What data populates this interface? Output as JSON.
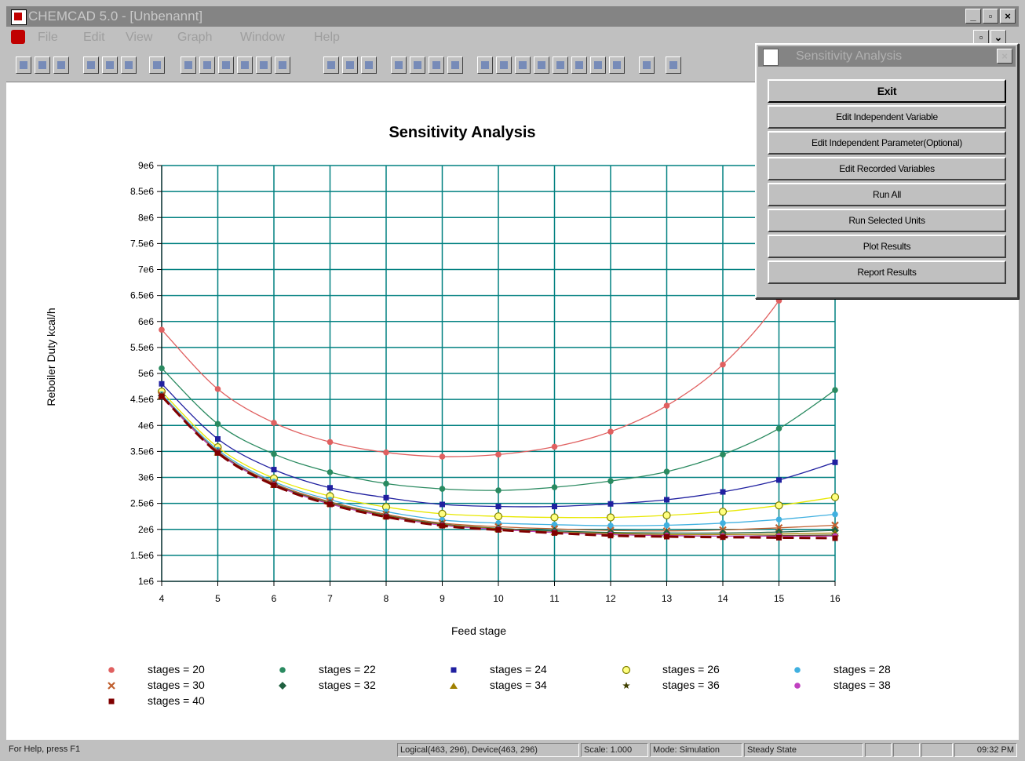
{
  "window": {
    "title": "CHEMCAD 5.0 - [Unbenannt]",
    "controls": [
      "_",
      "▫",
      "×"
    ]
  },
  "menu": {
    "items": [
      "File",
      "Edit",
      "View",
      "Graph",
      "Window",
      "Help"
    ]
  },
  "toolbar": {
    "buttons": [
      "new-icon",
      "open-icon",
      "save-icon",
      "cut-icon",
      "copy-icon",
      "paste-icon",
      "print-icon",
      "zoom-percent-icon",
      "zoom-in-icon",
      "zoom-out-icon",
      "pointer-icon",
      "pointer-select-icon",
      "zoom-fit-icon",
      "rectangle-icon",
      "grid-icon",
      "chart-icon",
      "xy-icon",
      "y-plus-icon",
      "h-plus-icon",
      "arrow-icon",
      "r-icon",
      "paint-icon",
      "rotate-icon",
      "flip-icon",
      "text-icon",
      "frame-icon",
      "marker-icon",
      "legend-icon",
      "pilcrow-icon",
      "help-icon"
    ]
  },
  "dialog": {
    "title": "Sensitivity Analysis",
    "buttons": [
      "Exit",
      "Edit Independent Variable",
      "Edit Independent Parameter(Optional)",
      "Edit Recorded Variables",
      "Run All",
      "Run Selected Units",
      "Plot Results",
      "Report Results"
    ]
  },
  "statusbar": {
    "help": "For Help, press F1",
    "coords": "Logical(463, 296), Device(463, 296)",
    "scale": "Scale: 1.000",
    "mode": "Mode: Simulation",
    "state": "Steady State",
    "time": "09:32 PM"
  },
  "colors": {
    "grid": "#008080",
    "axis": "#000000"
  },
  "chart_data": {
    "type": "line",
    "title": "Sensitivity Analysis",
    "xlabel": "Feed stage",
    "ylabel": "Reboiler Duty  kcal/h",
    "x": [
      4,
      5,
      6,
      7,
      8,
      9,
      10,
      11,
      12,
      13,
      14,
      15,
      16
    ],
    "x_ticks": [
      "4",
      "5",
      "6",
      "7",
      "8",
      "9",
      "10",
      "11",
      "12",
      "13",
      "14",
      "15",
      "16"
    ],
    "ylim": [
      1000000,
      9000000
    ],
    "y_ticks": [
      {
        "v": 1000000,
        "label": "1e6"
      },
      {
        "v": 1500000,
        "label": "1.5e6"
      },
      {
        "v": 2000000,
        "label": "2e6"
      },
      {
        "v": 2500000,
        "label": "2.5e6"
      },
      {
        "v": 3000000,
        "label": "3e6"
      },
      {
        "v": 3500000,
        "label": "3.5e6"
      },
      {
        "v": 4000000,
        "label": "4e6"
      },
      {
        "v": 4500000,
        "label": "4.5e6"
      },
      {
        "v": 5000000,
        "label": "5e6"
      },
      {
        "v": 5500000,
        "label": "5.5e6"
      },
      {
        "v": 6000000,
        "label": "6e6"
      },
      {
        "v": 6500000,
        "label": "6.5e6"
      },
      {
        "v": 7000000,
        "label": "7e6"
      },
      {
        "v": 7500000,
        "label": "7.5e6"
      },
      {
        "v": 8000000,
        "label": "8e6"
      },
      {
        "v": 8500000,
        "label": "8.5e6"
      },
      {
        "v": 9000000,
        "label": "9e6"
      }
    ],
    "grid": true,
    "legend_position": "bottom",
    "series": [
      {
        "name": "stages = 20",
        "color": "#e06060",
        "marker": "dot",
        "values": [
          5840000,
          4700000,
          4050000,
          3680000,
          3480000,
          3400000,
          3440000,
          3590000,
          3880000,
          4380000,
          5170000,
          6400000,
          8200000
        ]
      },
      {
        "name": "stages = 22",
        "color": "#2a8a60",
        "marker": "dot",
        "values": [
          5100000,
          4030000,
          3450000,
          3100000,
          2880000,
          2780000,
          2750000,
          2810000,
          2930000,
          3110000,
          3440000,
          3940000,
          4680000
        ]
      },
      {
        "name": "stages = 24",
        "color": "#2020a0",
        "marker": "square",
        "values": [
          4800000,
          3740000,
          3150000,
          2800000,
          2610000,
          2480000,
          2440000,
          2440000,
          2490000,
          2570000,
          2720000,
          2950000,
          3290000
        ]
      },
      {
        "name": "stages = 26",
        "color": "#e8e800",
        "marker": "circle",
        "values": [
          4650000,
          3580000,
          2980000,
          2640000,
          2430000,
          2300000,
          2250000,
          2230000,
          2230000,
          2270000,
          2340000,
          2460000,
          2620000
        ]
      },
      {
        "name": "stages = 28",
        "color": "#40b0e0",
        "marker": "dot",
        "values": [
          4600000,
          3530000,
          2920000,
          2570000,
          2340000,
          2180000,
          2120000,
          2090000,
          2070000,
          2080000,
          2120000,
          2190000,
          2290000
        ]
      },
      {
        "name": "stages = 30",
        "color": "#c06030",
        "marker": "x",
        "values": [
          4580000,
          3500000,
          2890000,
          2530000,
          2290000,
          2120000,
          2050000,
          2010000,
          1980000,
          1970000,
          1990000,
          2030000,
          2080000
        ]
      },
      {
        "name": "stages = 32",
        "color": "#206040",
        "marker": "diamond",
        "values": [
          4570000,
          3490000,
          2870000,
          2510000,
          2270000,
          2100000,
          2020000,
          1970000,
          1940000,
          1930000,
          1930000,
          1950000,
          1980000
        ]
      },
      {
        "name": "stages = 34",
        "color": "#a08000",
        "marker": "triangle",
        "values": [
          4570000,
          3480000,
          2860000,
          2500000,
          2260000,
          2090000,
          2010000,
          1950000,
          1920000,
          1900000,
          1900000,
          1910000,
          1930000
        ]
      },
      {
        "name": "stages = 36",
        "color": "#404000",
        "marker": "star",
        "values": [
          4560000,
          3480000,
          2860000,
          2490000,
          2250000,
          2080000,
          2000000,
          1940000,
          1900000,
          1880000,
          1870000,
          1880000,
          1890000
        ]
      },
      {
        "name": "stages = 38",
        "color": "#c040c0",
        "marker": "dot",
        "values": [
          4560000,
          3480000,
          2860000,
          2490000,
          2250000,
          2080000,
          2000000,
          1940000,
          1900000,
          1880000,
          1870000,
          1870000,
          1870000
        ]
      },
      {
        "name": "stages = 40",
        "color": "#800000",
        "marker": "square",
        "dashed": true,
        "values": [
          4560000,
          3470000,
          2850000,
          2480000,
          2240000,
          2070000,
          1990000,
          1930000,
          1880000,
          1860000,
          1850000,
          1840000,
          1830000
        ]
      }
    ]
  }
}
